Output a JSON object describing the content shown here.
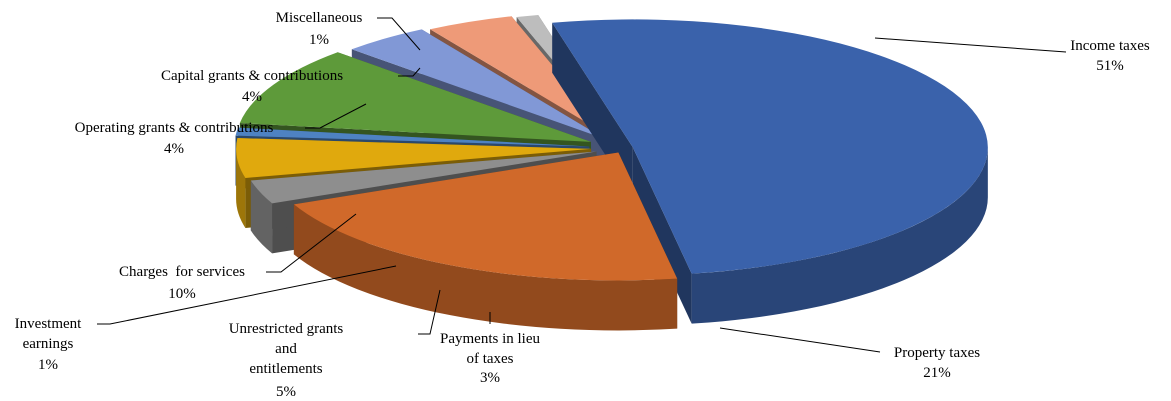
{
  "chart_data": {
    "type": "pie",
    "style": "3d-exploded",
    "title": "",
    "legend": "none",
    "slices": [
      {
        "label": "Income taxes",
        "value": 51,
        "value_label": "51%",
        "color": "#3A62AB"
      },
      {
        "label": "Property taxes",
        "value": 21,
        "value_label": "21%",
        "color": "#D0692A"
      },
      {
        "label": "Payments in lieu of taxes",
        "value": 3,
        "value_label": "3%",
        "color": "#8E8E8E"
      },
      {
        "label": "Unrestricted grants and entitlements",
        "value": 5,
        "value_label": "5%",
        "color": "#E0A90D"
      },
      {
        "label": "Investment earnings",
        "value": 1,
        "value_label": "1%",
        "color": "#4E82C2"
      },
      {
        "label": "Charges  for services",
        "value": 10,
        "value_label": "10%",
        "color": "#5E9A3A"
      },
      {
        "label": "Operating grants & contributions",
        "value": 4,
        "value_label": "4%",
        "color": "#8198D6"
      },
      {
        "label": "Capital grants & contributions",
        "value": 4,
        "value_label": "4%",
        "color": "#EE9A78"
      },
      {
        "label": "Miscellaneous",
        "value": 1,
        "value_label": "1%",
        "color": "#BDBDBD"
      }
    ]
  }
}
